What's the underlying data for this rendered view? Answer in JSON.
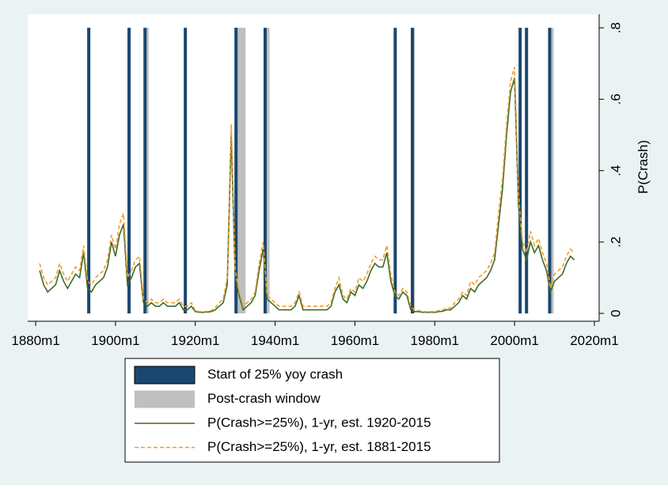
{
  "chart_data": {
    "type": "line",
    "y_label": "P(Crash)",
    "x": [
      1881,
      1882,
      1883,
      1884,
      1885,
      1886,
      1887,
      1888,
      1889,
      1890,
      1891,
      1892,
      1893,
      1894,
      1895,
      1896,
      1897,
      1898,
      1899,
      1900,
      1901,
      1902,
      1903,
      1904,
      1905,
      1906,
      1907,
      1908,
      1909,
      1910,
      1911,
      1912,
      1913,
      1914,
      1915,
      1916,
      1917,
      1918,
      1919,
      1920,
      1921,
      1922,
      1923,
      1924,
      1925,
      1926,
      1927,
      1928,
      1929,
      1930,
      1931,
      1932,
      1933,
      1934,
      1935,
      1936,
      1937,
      1938,
      1939,
      1940,
      1941,
      1942,
      1943,
      1944,
      1945,
      1946,
      1947,
      1948,
      1949,
      1950,
      1951,
      1952,
      1953,
      1954,
      1955,
      1956,
      1957,
      1958,
      1959,
      1960,
      1961,
      1962,
      1963,
      1964,
      1965,
      1966,
      1967,
      1968,
      1969,
      1970,
      1971,
      1972,
      1973,
      1974,
      1975,
      1976,
      1977,
      1978,
      1979,
      1980,
      1981,
      1982,
      1983,
      1984,
      1985,
      1986,
      1987,
      1988,
      1989,
      1990,
      1991,
      1992,
      1993,
      1994,
      1995,
      1996,
      1997,
      1998,
      1999,
      2000,
      2001,
      2002,
      2003,
      2004,
      2005,
      2006,
      2007,
      2008,
      2009,
      2010,
      2011,
      2012,
      2013,
      2014,
      2015
    ],
    "series": [
      {
        "name": "P(Crash>=25%), 1-yr, est. 1920-2015",
        "color": "#3d6b28",
        "dashed": false,
        "values": [
          0.12,
          0.08,
          0.06,
          0.07,
          0.08,
          0.12,
          0.09,
          0.07,
          0.09,
          0.11,
          0.1,
          0.17,
          0.07,
          0.06,
          0.08,
          0.09,
          0.1,
          0.13,
          0.2,
          0.16,
          0.22,
          0.25,
          0.08,
          0.1,
          0.13,
          0.14,
          0.03,
          0.02,
          0.03,
          0.02,
          0.02,
          0.03,
          0.02,
          0.02,
          0.02,
          0.03,
          0.01,
          0.01,
          0.02,
          0.005,
          0.003,
          0.003,
          0.004,
          0.005,
          0.01,
          0.02,
          0.03,
          0.08,
          0.5,
          0.1,
          0.05,
          0.01,
          0.02,
          0.03,
          0.05,
          0.12,
          0.18,
          0.04,
          0.03,
          0.02,
          0.01,
          0.01,
          0.01,
          0.01,
          0.02,
          0.05,
          0.01,
          0.01,
          0.01,
          0.01,
          0.01,
          0.01,
          0.01,
          0.02,
          0.06,
          0.08,
          0.04,
          0.03,
          0.06,
          0.05,
          0.08,
          0.07,
          0.09,
          0.12,
          0.14,
          0.13,
          0.13,
          0.17,
          0.09,
          0.05,
          0.04,
          0.06,
          0.05,
          0.01,
          0.005,
          0.005,
          0.003,
          0.003,
          0.003,
          0.003,
          0.005,
          0.006,
          0.01,
          0.01,
          0.02,
          0.03,
          0.05,
          0.04,
          0.07,
          0.06,
          0.08,
          0.09,
          0.1,
          0.12,
          0.15,
          0.25,
          0.35,
          0.5,
          0.62,
          0.66,
          0.3,
          0.18,
          0.15,
          0.2,
          0.17,
          0.19,
          0.15,
          0.12,
          0.06,
          0.09,
          0.1,
          0.11,
          0.14,
          0.16,
          0.15
        ]
      },
      {
        "name": "P(Crash>=25%), 1-yr, est. 1881-2015",
        "color": "#f39c2b",
        "dashed": true,
        "values": [
          0.14,
          0.1,
          0.08,
          0.09,
          0.1,
          0.14,
          0.11,
          0.09,
          0.11,
          0.13,
          0.12,
          0.19,
          0.09,
          0.08,
          0.1,
          0.11,
          0.12,
          0.15,
          0.22,
          0.18,
          0.25,
          0.28,
          0.1,
          0.12,
          0.15,
          0.16,
          0.04,
          0.03,
          0.04,
          0.03,
          0.03,
          0.04,
          0.03,
          0.03,
          0.03,
          0.04,
          0.02,
          0.02,
          0.03,
          0.008,
          0.005,
          0.005,
          0.006,
          0.008,
          0.015,
          0.03,
          0.04,
          0.1,
          0.53,
          0.12,
          0.06,
          0.02,
          0.03,
          0.04,
          0.06,
          0.14,
          0.2,
          0.05,
          0.04,
          0.03,
          0.02,
          0.02,
          0.02,
          0.02,
          0.03,
          0.06,
          0.02,
          0.02,
          0.02,
          0.02,
          0.02,
          0.02,
          0.02,
          0.03,
          0.07,
          0.1,
          0.05,
          0.04,
          0.07,
          0.06,
          0.1,
          0.09,
          0.11,
          0.14,
          0.16,
          0.15,
          0.15,
          0.19,
          0.11,
          0.06,
          0.05,
          0.07,
          0.06,
          0.02,
          0.008,
          0.008,
          0.005,
          0.005,
          0.005,
          0.005,
          0.008,
          0.01,
          0.015,
          0.015,
          0.03,
          0.04,
          0.06,
          0.05,
          0.09,
          0.08,
          0.1,
          0.11,
          0.12,
          0.14,
          0.17,
          0.28,
          0.38,
          0.53,
          0.65,
          0.69,
          0.33,
          0.2,
          0.17,
          0.23,
          0.19,
          0.21,
          0.17,
          0.14,
          0.07,
          0.11,
          0.12,
          0.13,
          0.16,
          0.18,
          0.17
        ]
      }
    ],
    "crash_starts": {
      "name": "Start of 25% yoy crash",
      "color": "#1a476f",
      "x": [
        1893.3,
        1903.4,
        1907.4,
        1917.5,
        1930.2,
        1937.5,
        1970.1,
        1974.4,
        2001.4,
        2003.0,
        2008.8
      ]
    },
    "post_crash_windows": {
      "name": "Post-crash window",
      "color": "#bfbfbf",
      "x": [
        [
          1893.3,
          1893.6
        ],
        [
          1903.4,
          1903.8
        ],
        [
          1907.4,
          1908.3
        ],
        [
          1930.2,
          1932.6
        ],
        [
          1937.5,
          1938.6
        ],
        [
          1974.4,
          1975.0
        ],
        [
          2008.8,
          2009.8
        ]
      ]
    },
    "xlim": [
      1878.0,
      2021.2
    ],
    "ylim": [
      -0.022,
      0.838
    ],
    "xticks": [
      {
        "value": 1880,
        "label": "1880m1"
      },
      {
        "value": 1900,
        "label": "1900m1"
      },
      {
        "value": 1920,
        "label": "1920m1"
      },
      {
        "value": 1940,
        "label": "1940m1"
      },
      {
        "value": 1960,
        "label": "1960m1"
      },
      {
        "value": 1980,
        "label": "1980m1"
      },
      {
        "value": 2000,
        "label": "2000m1"
      },
      {
        "value": 2020,
        "label": "2020m1"
      }
    ],
    "yticks": [
      0,
      {
        "value": 0.2,
        "label": ".2"
      },
      {
        "value": 0.4,
        "label": ".4"
      },
      {
        "value": 0.6,
        "label": ".6"
      },
      {
        "value": 0.8,
        "label": ".8"
      }
    ]
  }
}
